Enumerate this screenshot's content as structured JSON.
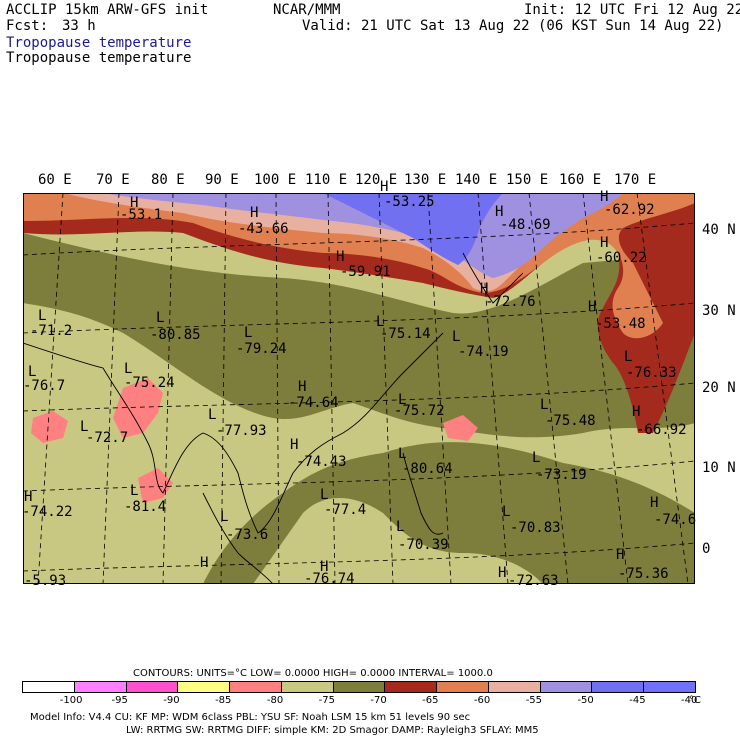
{
  "header": {
    "model_title": "ACCLIP 15km ARW-GFS init",
    "center": "NCAR/MMM",
    "init": "Init: 12 UTC Fri 12 Aug 22",
    "fcst_label": "Fcst:",
    "fcst_value": "33 h",
    "valid": "Valid: 21 UTC Sat 13 Aug 22 (06 KST Sun 14 Aug 22)",
    "field_title_1": "Tropopause temperature",
    "field_title_2": "Tropopause temperature"
  },
  "longitude_labels": [
    "60 E",
    "70 E",
    "80 E",
    "90 E",
    "100 E",
    "110 E",
    "120 E",
    "130 E",
    "140 E",
    "150 E",
    "160 E",
    "170 E"
  ],
  "latitude_labels": [
    "40 N",
    "30 N",
    "20 N",
    "10 N",
    "0"
  ],
  "extrema": [
    {
      "type": "H",
      "value": "-53.1"
    },
    {
      "type": "H",
      "value": "-43.66"
    },
    {
      "type": "H",
      "value": "-53.25"
    },
    {
      "type": "H",
      "value": "-48.69"
    },
    {
      "type": "H",
      "value": "-62.92"
    },
    {
      "type": "H",
      "value": "-60.22"
    },
    {
      "type": "H",
      "value": "-59.91"
    },
    {
      "type": "H",
      "value": "-72.76"
    },
    {
      "type": "H",
      "value": "-53.48"
    },
    {
      "type": "L",
      "value": "-71.2"
    },
    {
      "type": "L",
      "value": "-80.85"
    },
    {
      "type": "L",
      "value": "-79.24"
    },
    {
      "type": "L",
      "value": "-75.14"
    },
    {
      "type": "L",
      "value": "-74.19"
    },
    {
      "type": "L",
      "value": "-76.33"
    },
    {
      "type": "L",
      "value": "-76.7"
    },
    {
      "type": "L",
      "value": "-75.24"
    },
    {
      "type": "H",
      "value": "-74.64"
    },
    {
      "type": "L",
      "value": "-75.72"
    },
    {
      "type": "L",
      "value": "-75.48"
    },
    {
      "type": "H",
      "value": "-66.92"
    },
    {
      "type": "L",
      "value": "-72.7"
    },
    {
      "type": "L",
      "value": "-77.93"
    },
    {
      "type": "H",
      "value": "-74.43"
    },
    {
      "type": "L",
      "value": "-80.64"
    },
    {
      "type": "L",
      "value": "-73.19"
    },
    {
      "type": "L",
      "value": "-81.4"
    },
    {
      "type": "H",
      "value": "-74.22"
    },
    {
      "type": "L",
      "value": "-77.4"
    },
    {
      "type": "L",
      "value": "-70.83"
    },
    {
      "type": "H",
      "value": "-74.6"
    },
    {
      "type": "L",
      "value": "-73.6"
    },
    {
      "type": "L",
      "value": "-70.39"
    },
    {
      "type": "H",
      "value": "-75.36"
    },
    {
      "type": "H",
      "value": "-72.63"
    },
    {
      "type": "H",
      "value": "-76.74"
    },
    {
      "type": "H",
      "value": "-5.93"
    }
  ],
  "contours": {
    "line": "CONTOURS:  UNITS=°C  LOW=  0.0000      HIGH=  0.0000      INTERVAL=   1000.0"
  },
  "colorbar": {
    "colors": [
      "#ffffff",
      "#ff80ff",
      "#ff50d0",
      "#ffff80",
      "#ff8080",
      "#c8c882",
      "#7d7d3c",
      "#a52a1e",
      "#e08050",
      "#e8b0a0",
      "#a090e0",
      "#7070f0",
      "#7070f8"
    ],
    "labels": [
      "-100",
      "-95",
      "-90",
      "-85",
      "-80",
      "-75",
      "-70",
      "-65",
      "-60",
      "-55",
      "-50",
      "-45",
      "-40"
    ],
    "unit": "°C"
  },
  "footer": {
    "line1": "Model Info: V4.4      CU: KF        MP: WDM 6class  PBL: YSU          SF: Noah LSM      15 km     51 levels    90 sec",
    "line2": "LW: RRTMG    SW: RRTMG   DIFF: simple KM: 2D Smagor DAMP: Rayleigh3  SFLAY: MM5"
  }
}
